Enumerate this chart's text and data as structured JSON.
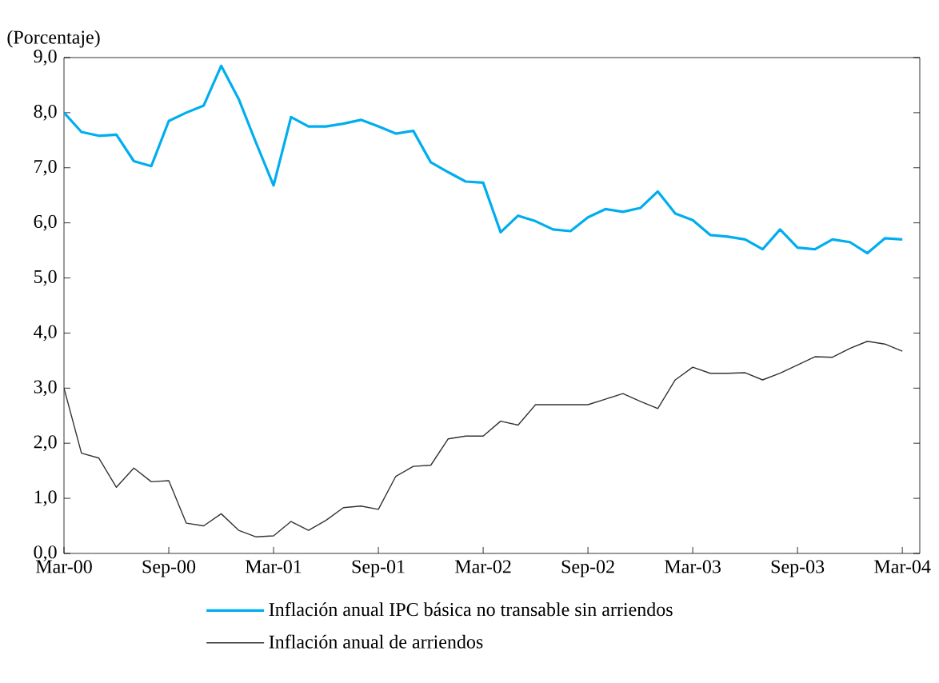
{
  "chart_data": {
    "type": "line",
    "ylabel": "(Porcentaje)",
    "x": [
      "2000-03",
      "2000-04",
      "2000-05",
      "2000-06",
      "2000-07",
      "2000-08",
      "2000-09",
      "2000-10",
      "2000-11",
      "2000-12",
      "2001-01",
      "2001-02",
      "2001-03",
      "2001-04",
      "2001-05",
      "2001-06",
      "2001-07",
      "2001-08",
      "2001-09",
      "2001-10",
      "2001-11",
      "2001-12",
      "2002-01",
      "2002-02",
      "2002-03",
      "2002-04",
      "2002-05",
      "2002-06",
      "2002-07",
      "2002-08",
      "2002-09",
      "2002-10",
      "2002-11",
      "2002-12",
      "2003-01",
      "2003-02",
      "2003-03",
      "2003-04",
      "2003-05",
      "2003-06",
      "2003-07",
      "2003-08",
      "2003-09",
      "2003-10",
      "2003-11",
      "2003-12",
      "2004-01",
      "2004-02",
      "2004-03"
    ],
    "series": [
      {
        "name": "Inflación anual IPC básica no transable sin arriendos",
        "color": "#00aeef",
        "values": [
          8.0,
          7.65,
          7.58,
          7.6,
          7.12,
          7.03,
          7.85,
          8.0,
          8.13,
          8.85,
          8.25,
          7.45,
          6.68,
          7.92,
          7.75,
          7.75,
          7.8,
          7.87,
          7.75,
          7.62,
          7.67,
          7.1,
          6.92,
          6.75,
          6.73,
          5.83,
          6.13,
          6.03,
          5.88,
          5.85,
          6.1,
          6.25,
          6.2,
          6.27,
          6.57,
          6.17,
          6.05,
          5.78,
          5.75,
          5.7,
          5.52,
          5.88,
          5.55,
          5.52,
          5.7,
          5.65,
          5.45,
          5.72,
          5.7
        ]
      },
      {
        "name": "Inflación anual de arriendos",
        "color": "#333333",
        "values": [
          3.0,
          1.82,
          1.73,
          1.2,
          1.55,
          1.3,
          1.32,
          0.55,
          0.5,
          0.72,
          0.42,
          0.3,
          0.32,
          0.58,
          0.42,
          0.6,
          0.83,
          0.86,
          0.8,
          1.4,
          1.58,
          1.6,
          2.08,
          2.13,
          2.13,
          2.4,
          2.33,
          2.7,
          2.7,
          2.7,
          2.7,
          2.8,
          2.9,
          2.76,
          2.63,
          3.15,
          3.38,
          3.27,
          3.27,
          3.28,
          3.15,
          3.27,
          3.42,
          3.57,
          3.56,
          3.72,
          3.85,
          3.8,
          3.67
        ]
      }
    ],
    "xlim": [
      "2000-03",
      "2004-04"
    ],
    "xticks": [
      {
        "value": "2000-03",
        "label": "Mar-00"
      },
      {
        "value": "2000-09",
        "label": "Sep-00"
      },
      {
        "value": "2001-03",
        "label": "Mar-01"
      },
      {
        "value": "2001-09",
        "label": "Sep-01"
      },
      {
        "value": "2002-03",
        "label": "Mar-02"
      },
      {
        "value": "2002-09",
        "label": "Sep-02"
      },
      {
        "value": "2003-03",
        "label": "Mar-03"
      },
      {
        "value": "2003-09",
        "label": "Sep-03"
      },
      {
        "value": "2004-03",
        "label": "Mar-04"
      }
    ],
    "ylim": [
      0,
      9
    ],
    "yticks": [
      {
        "value": 0,
        "label": "0,0"
      },
      {
        "value": 1,
        "label": "1,0"
      },
      {
        "value": 2,
        "label": "2,0"
      },
      {
        "value": 3,
        "label": "3,0"
      },
      {
        "value": 4,
        "label": "4,0"
      },
      {
        "value": 5,
        "label": "5,0"
      },
      {
        "value": 6,
        "label": "6,0"
      },
      {
        "value": 7,
        "label": "7,0"
      },
      {
        "value": 8,
        "label": "8,0"
      },
      {
        "value": 9,
        "label": "9,0"
      }
    ],
    "grid": false,
    "legend": "bottom",
    "marker": "none",
    "line_style": "solid"
  }
}
